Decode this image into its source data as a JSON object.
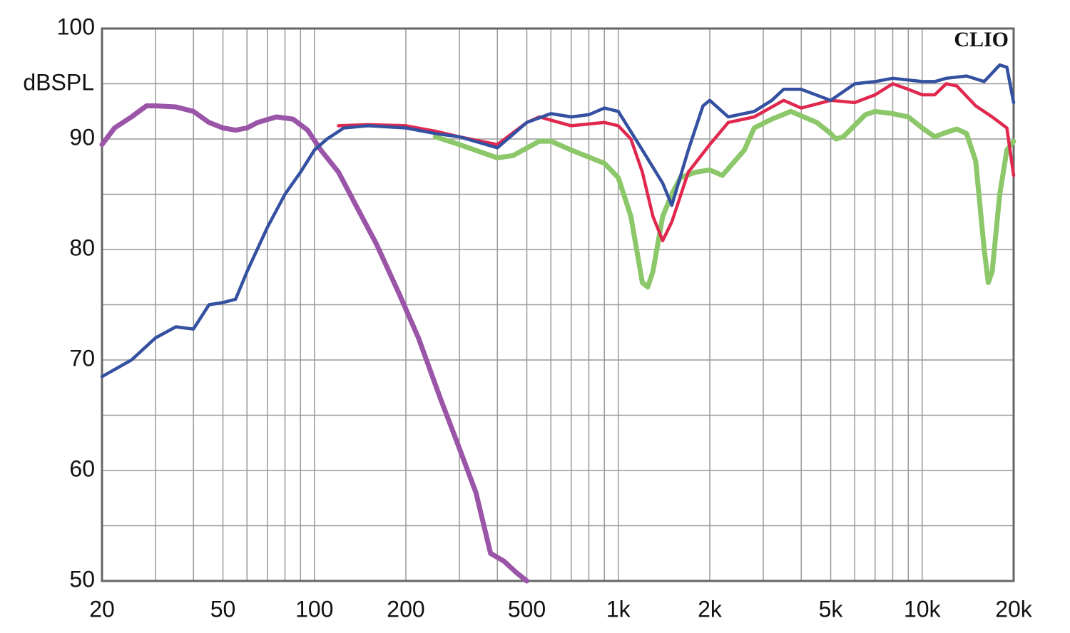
{
  "chart_data": {
    "type": "line",
    "y_label": "dBSPL",
    "annotation": "CLIO",
    "log_x": true,
    "grid": true,
    "xlim": [
      20,
      20000
    ],
    "ylim": [
      50,
      100
    ],
    "xticks": [
      20,
      50,
      100,
      200,
      500,
      {
        "value": 1000,
        "label": "1k"
      },
      {
        "value": 2000,
        "label": "2k"
      },
      {
        "value": 5000,
        "label": "5k"
      },
      {
        "value": 10000,
        "label": "10k"
      },
      {
        "value": 20000,
        "label": "20k"
      }
    ],
    "xminor": [
      30,
      40,
      60,
      70,
      80,
      90,
      300,
      400,
      600,
      700,
      800,
      900,
      3000,
      4000,
      6000,
      7000,
      8000,
      9000
    ],
    "yticks": [
      50,
      60,
      70,
      80,
      90,
      100
    ],
    "yminor": [
      55,
      65,
      75,
      85,
      95
    ],
    "series": [
      {
        "color": "#9b55a8",
        "width": 7,
        "x": [
          20,
          22,
          25,
          28,
          30,
          35,
          40,
          45,
          50,
          55,
          60,
          65,
          75,
          85,
          95,
          105,
          120,
          140,
          160,
          190,
          220,
          260,
          300,
          340,
          380,
          420,
          460,
          500
        ],
        "values": [
          89.5,
          91,
          92,
          93,
          93,
          92.9,
          92.5,
          91.5,
          91,
          90.8,
          91,
          91.5,
          92,
          91.8,
          90.8,
          89,
          87,
          83.5,
          80.5,
          76,
          72,
          66.5,
          62,
          58,
          52.5,
          51.8,
          50.8,
          50
        ]
      },
      {
        "color": "#8cc86a",
        "width": 7,
        "x": [
          250,
          300,
          400,
          450,
          550,
          600,
          700,
          900,
          1000,
          1100,
          1200,
          1250,
          1300,
          1400,
          1500,
          1600,
          1800,
          2000,
          2200,
          2600,
          2800,
          3200,
          3700,
          4500,
          5000,
          5200,
          5500,
          6500,
          7000,
          8000,
          9000,
          10000,
          11000,
          12000,
          13000,
          14000,
          15000,
          16000,
          16500,
          17000,
          18000,
          19000,
          20000
        ],
        "values": [
          90.2,
          89.5,
          88.3,
          88.5,
          89.8,
          89.8,
          89,
          87.8,
          86.5,
          83,
          77,
          76.6,
          78,
          83,
          85,
          86.5,
          87,
          87.2,
          86.7,
          89,
          91,
          91.8,
          92.5,
          91.5,
          90.5,
          90,
          90.2,
          92.2,
          92.5,
          92.3,
          92,
          91,
          90.2,
          90.6,
          90.9,
          90.5,
          88,
          80,
          77,
          78,
          85,
          89,
          89.8
        ]
      },
      {
        "color": "#e0284e",
        "width": 4.5,
        "x": [
          120,
          150,
          200,
          250,
          300,
          400,
          500,
          550,
          600,
          700,
          900,
          1000,
          1100,
          1200,
          1300,
          1400,
          1500,
          1700,
          2000,
          2300,
          2800,
          3500,
          4000,
          5000,
          6000,
          7000,
          8000,
          9000,
          10000,
          11000,
          12000,
          13000,
          15000,
          17000,
          19000,
          20000
        ],
        "values": [
          91.2,
          91.3,
          91.2,
          90.7,
          90.2,
          89.5,
          91.5,
          92,
          91.7,
          91.2,
          91.5,
          91.2,
          90,
          87,
          83,
          80.8,
          82.5,
          87,
          89.5,
          91.5,
          92,
          93.5,
          92.8,
          93.5,
          93.3,
          94,
          95,
          94.5,
          94,
          94,
          95,
          94.8,
          93,
          92,
          91,
          86.7
        ]
      },
      {
        "color": "#3450a0",
        "width": 4.5,
        "x": [
          20,
          25,
          30,
          35,
          40,
          45,
          50,
          55,
          60,
          70,
          80,
          90,
          100,
          110,
          125,
          150,
          200,
          250,
          300,
          400,
          500,
          600,
          700,
          800,
          900,
          1000,
          1200,
          1400,
          1500,
          1700,
          1900,
          2000,
          2300,
          2800,
          3200,
          3500,
          4000,
          5000,
          6000,
          7000,
          8000,
          10000,
          11000,
          12000,
          14000,
          16000,
          18000,
          19000,
          20000
        ],
        "values": [
          68.5,
          70,
          72,
          73,
          72.8,
          75,
          75.2,
          75.5,
          78,
          82,
          85,
          87,
          89,
          90,
          91,
          91.2,
          91,
          90.5,
          90.2,
          89.2,
          91.5,
          92.3,
          92,
          92.2,
          92.8,
          92.5,
          89,
          86,
          84,
          89,
          93,
          93.5,
          92,
          92.5,
          93.5,
          94.5,
          94.5,
          93.5,
          95,
          95.2,
          95.5,
          95.2,
          95.2,
          95.5,
          95.7,
          95.2,
          96.7,
          96.5,
          93.3
        ]
      }
    ]
  }
}
